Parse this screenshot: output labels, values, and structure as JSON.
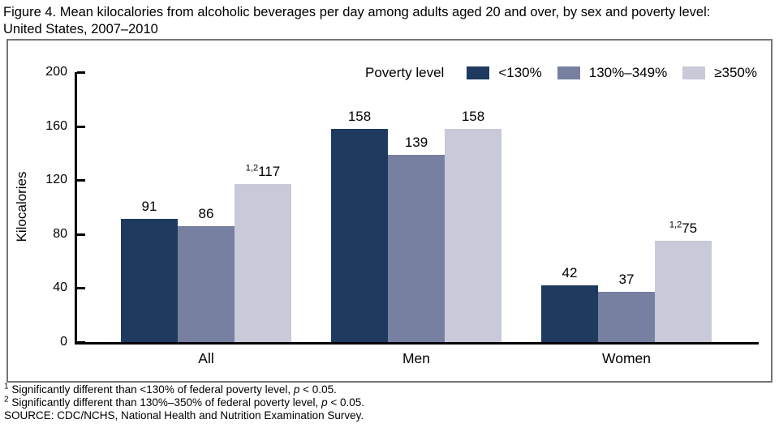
{
  "title_lines": [
    "Figure 4. Mean kilocalories from alcoholic beverages per day among adults aged 20 and over, by sex and poverty level:",
    "United States, 2007–2010"
  ],
  "legend": {
    "label": "Poverty level",
    "entries": [
      {
        "name": "<130%",
        "color": "#1f3a5f"
      },
      {
        "name": "130%–349%",
        "color": "#7880a1"
      },
      {
        "name": "≥350%",
        "color": "#c8c9d9"
      }
    ]
  },
  "chart_data": {
    "type": "bar",
    "title": "Figure 4. Mean kilocalories from alcoholic beverages per day among adults aged 20 and over, by sex and poverty level: United States, 2007–2010",
    "categories": [
      "All",
      "Men",
      "Women"
    ],
    "series": [
      {
        "name": "<130%",
        "color": "#1f3a5f",
        "values": [
          91,
          158,
          42
        ]
      },
      {
        "name": "130%–349%",
        "color": "#7880a1",
        "values": [
          86,
          139,
          37
        ]
      },
      {
        "name": "≥350%",
        "color": "#c8c9d9",
        "values": [
          117,
          158,
          75
        ],
        "value_sups": [
          "1,2",
          "",
          "1,2"
        ]
      }
    ],
    "xlabel": "",
    "ylabel": "Kilocalories",
    "yticks": [
      0,
      40,
      80,
      120,
      160,
      200
    ],
    "ylim": [
      0,
      200
    ],
    "grid": false,
    "legend_label": "Poverty level",
    "legend_position": "top-right"
  },
  "footnotes": [
    {
      "sup": "1",
      "pre": "Significantly different than <130% of federal poverty level, ",
      "italic": "p",
      "post": " < 0.05."
    },
    {
      "sup": "2",
      "pre": "Significantly different than 130%–350% of federal poverty level, ",
      "italic": "p",
      "post": " < 0.05."
    }
  ],
  "source": "SOURCE: CDC/NCHS, National Health and Nutrition Examination Survey."
}
